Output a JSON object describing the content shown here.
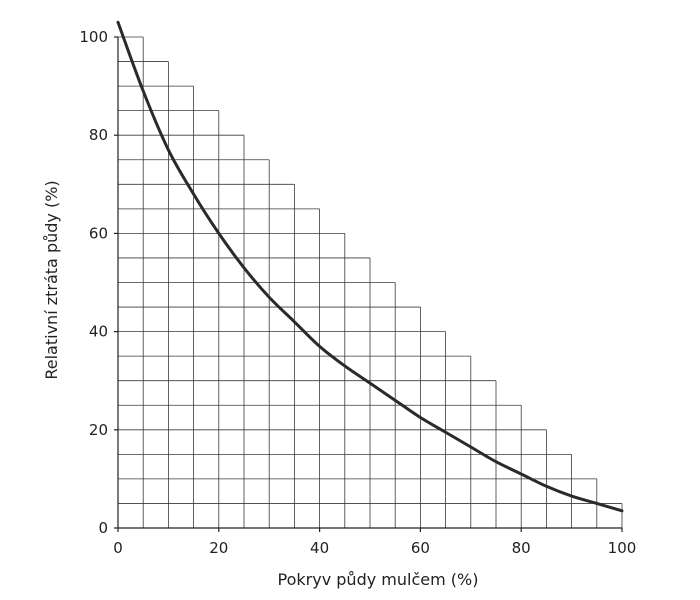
{
  "chart_data": {
    "type": "line",
    "title": "",
    "xlabel": "Pokryv půdy mulčem (%)",
    "ylabel": "Relativní ztráta půdy (%)",
    "xlim": [
      0,
      100
    ],
    "ylim": [
      0,
      100
    ],
    "x_ticks": [
      "0",
      "20",
      "40",
      "60",
      "80",
      "100"
    ],
    "y_ticks": [
      "0",
      "20",
      "40",
      "60",
      "80",
      "100"
    ],
    "grid": "staircase grid, 5 % step, cells only below line y = 100 − x",
    "series": [
      {
        "x": [
          0,
          5,
          10,
          15,
          20,
          25,
          30,
          35,
          40,
          45,
          50,
          55,
          60,
          65,
          70,
          75,
          80,
          85,
          90,
          95,
          100
        ],
        "values": [
          103,
          89,
          77,
          68,
          60,
          53,
          47,
          42,
          37,
          33,
          29.5,
          26,
          22.5,
          19.5,
          16.5,
          13.5,
          11,
          8.5,
          6.5,
          5,
          3.5
        ]
      }
    ]
  }
}
